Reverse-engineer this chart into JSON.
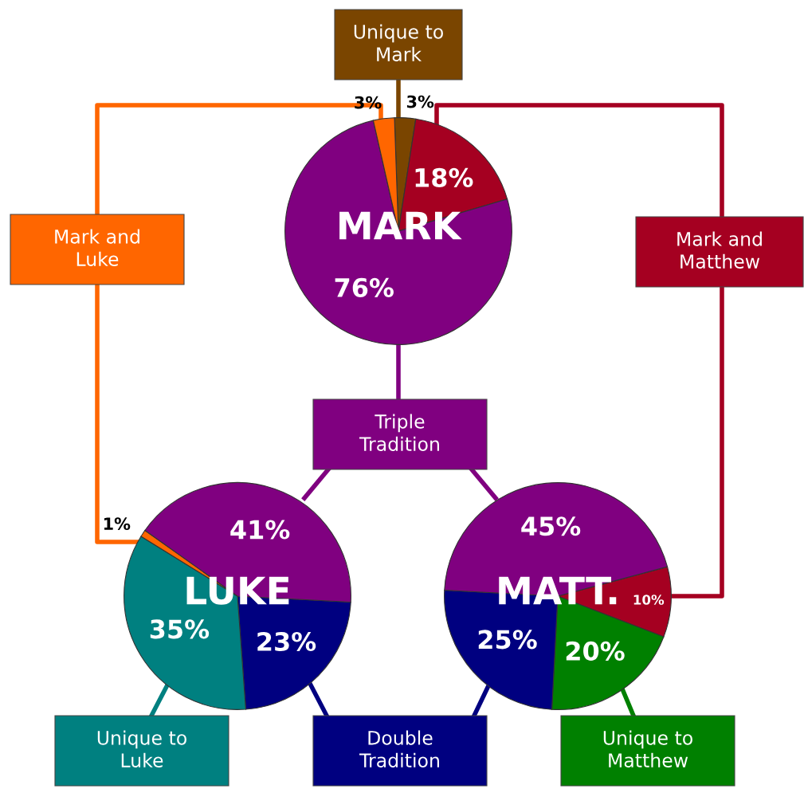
{
  "chart_data": [
    {
      "type": "pie",
      "title": "MARK",
      "categories": [
        null,
        null,
        null,
        null
      ],
      "values": [
        3,
        18,
        76,
        3
      ],
      "colors": [
        "#7a4500",
        "#a50021",
        "#800080",
        "#ff6600"
      ],
      "value_labels": [
        "3%",
        "18%",
        "76%",
        "3%"
      ]
    },
    {
      "type": "pie",
      "title": "LUKE",
      "categories": [
        null,
        null,
        null,
        null
      ],
      "values": [
        23,
        35,
        1,
        41
      ],
      "colors": [
        "#000080",
        "#008080",
        "#ff6600",
        "#800080"
      ],
      "value_labels": [
        "23%",
        "35%",
        "1%",
        "41%"
      ]
    },
    {
      "type": "pie",
      "title": "MATT.",
      "categories": [
        null,
        null,
        null,
        null
      ],
      "values": [
        10,
        20,
        25,
        45
      ],
      "colors": [
        "#a50021",
        "#008000",
        "#000080",
        "#800080"
      ],
      "value_labels": [
        "10%",
        "20%",
        "25%",
        "45%"
      ]
    },
    {
      "type": "other",
      "annotations": [
        "Unique to\nMark",
        "Mark and\nLuke",
        "Mark and\nMatthew",
        "Triple\nTradition",
        "Unique to\nLuke",
        "Double\nTradition",
        "Unique to\nMatthew"
      ]
    }
  ]
}
